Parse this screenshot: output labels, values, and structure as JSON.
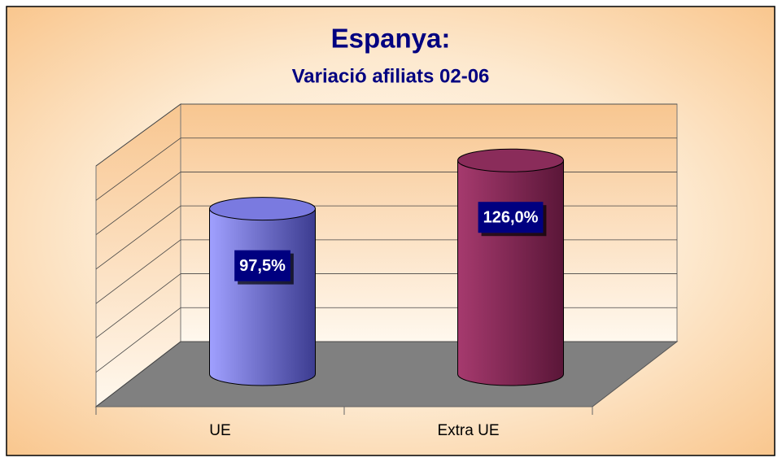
{
  "chart_data": {
    "type": "bar3d",
    "title": "Espanya:",
    "subtitle": "Variació afiliats 02-06",
    "categories": [
      "UE",
      "Extra UE"
    ],
    "values": [
      97.5,
      126.0
    ],
    "value_labels": [
      "97,5%",
      "126,0%"
    ],
    "colors": [
      "#8f8fef",
      "#8e2a5a"
    ],
    "ylim": [
      0,
      140
    ],
    "yticks": [
      0,
      20,
      40,
      60,
      80,
      100,
      120,
      140
    ],
    "grid": true
  }
}
